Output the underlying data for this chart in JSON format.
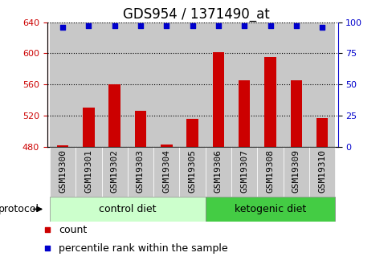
{
  "title": "GDS954 / 1371490_at",
  "samples": [
    "GSM19300",
    "GSM19301",
    "GSM19302",
    "GSM19303",
    "GSM19304",
    "GSM19305",
    "GSM19306",
    "GSM19307",
    "GSM19308",
    "GSM19309",
    "GSM19310"
  ],
  "counts": [
    482,
    530,
    560,
    526,
    483,
    516,
    601,
    565,
    595,
    565,
    517
  ],
  "percentiles": [
    96,
    97,
    97,
    97,
    97,
    97,
    97,
    97,
    97,
    97,
    96
  ],
  "ylim_left": [
    480,
    640
  ],
  "ylim_right": [
    0,
    100
  ],
  "yticks_left": [
    480,
    520,
    560,
    600,
    640
  ],
  "yticks_right": [
    0,
    25,
    50,
    75,
    100
  ],
  "bar_color": "#cc0000",
  "dot_color": "#0000cc",
  "col_bg_color": "#c8c8c8",
  "groups": [
    {
      "label": "control diet",
      "start": 0,
      "end": 5,
      "color": "#ccffcc"
    },
    {
      "label": "ketogenic diet",
      "start": 6,
      "end": 10,
      "color": "#44cc44"
    }
  ],
  "protocol_label": "protocol",
  "legend_count": "count",
  "legend_pct": "percentile rank within the sample",
  "bar_bottom": 480,
  "title_fontsize": 12,
  "tick_fontsize": 8,
  "label_fontsize": 9,
  "group_fontsize": 9
}
